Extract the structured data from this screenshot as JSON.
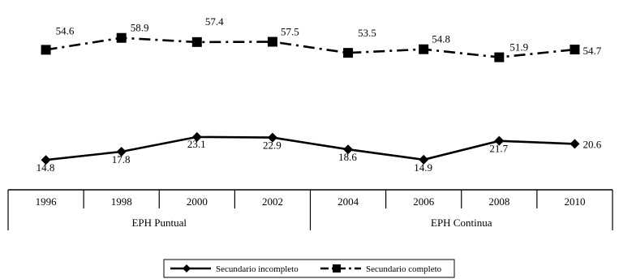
{
  "chart_data": {
    "type": "line",
    "title": "",
    "xlabel": "",
    "ylabel": "",
    "categories": [
      "1996",
      "1998",
      "2000",
      "2002",
      "2004",
      "2006",
      "2008",
      "2010"
    ],
    "groups": [
      {
        "label": "EPH Puntual",
        "categories": [
          "1996",
          "1998",
          "2000",
          "2002"
        ]
      },
      {
        "label": "EPH Continua",
        "categories": [
          "2004",
          "2006",
          "2008",
          "2010"
        ]
      }
    ],
    "series": [
      {
        "name": "Secundario incompleto",
        "marker": "diamond",
        "line": "solid",
        "color": "#000000",
        "values": [
          14.8,
          17.8,
          23.1,
          22.9,
          18.6,
          14.9,
          21.7,
          20.6
        ],
        "labels": [
          "14.8",
          "17.8",
          "23.1",
          "22.9",
          "18.6",
          "14.9",
          "21.7",
          "20.6"
        ]
      },
      {
        "name": "Secundario completo",
        "marker": "square",
        "line": "dash-dot",
        "color": "#000000",
        "values": [
          54.6,
          58.9,
          57.4,
          57.5,
          53.5,
          54.8,
          51.9,
          54.7
        ],
        "labels": [
          "54.6",
          "58.9",
          "57.4",
          "57.5",
          "53.5",
          "54.8",
          "51.9",
          "54.7"
        ]
      }
    ],
    "legend_position": "bottom-center",
    "grid": false
  }
}
